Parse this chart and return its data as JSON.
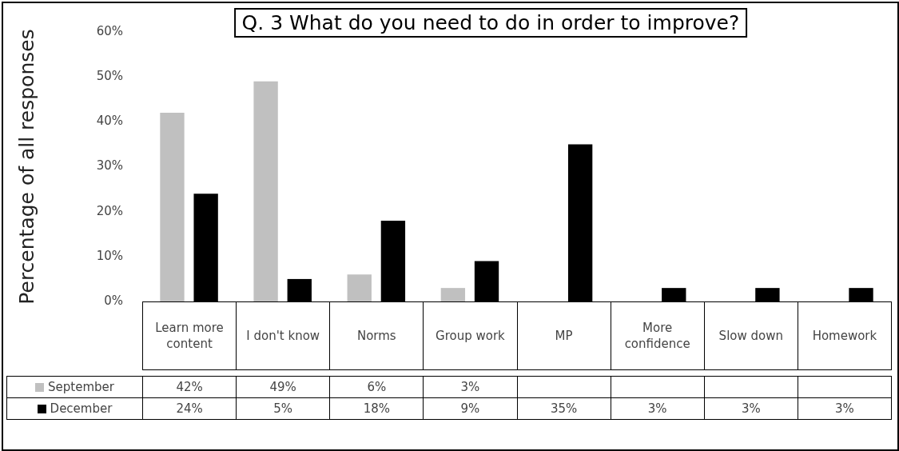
{
  "chart_data": {
    "type": "bar",
    "title": "Q. 3 What do you need to do in order to improve?",
    "ylabel": "Percentage of all responses",
    "categories": [
      "Learn more content",
      "I don't know",
      "Norms",
      "Group work",
      "MP",
      "More confidence",
      "Slow down",
      "Homework"
    ],
    "series": [
      {
        "name": "September",
        "color": "#c0c0c0",
        "values": [
          42,
          49,
          6,
          3,
          null,
          null,
          null,
          null
        ],
        "value_labels": [
          "42%",
          "49%",
          "6%",
          "3%",
          null,
          null,
          null,
          null
        ]
      },
      {
        "name": "December",
        "color": "#000000",
        "values": [
          24,
          5,
          18,
          9,
          35,
          3,
          3,
          3
        ],
        "value_labels": [
          "24%",
          "5%",
          "18%",
          "9%",
          "35%",
          "3%",
          "3%",
          "3%"
        ]
      }
    ],
    "ylim": [
      0,
      60
    ],
    "yticks": [
      {
        "value": 0,
        "label": "0%"
      },
      {
        "value": 10,
        "label": "10%"
      },
      {
        "value": 20,
        "label": "20%"
      },
      {
        "value": 30,
        "label": "30%"
      },
      {
        "value": 40,
        "label": "40%"
      },
      {
        "value": 50,
        "label": "50%"
      },
      {
        "value": 60,
        "label": "60%"
      }
    ],
    "grid": false,
    "legend": "bottom"
  }
}
